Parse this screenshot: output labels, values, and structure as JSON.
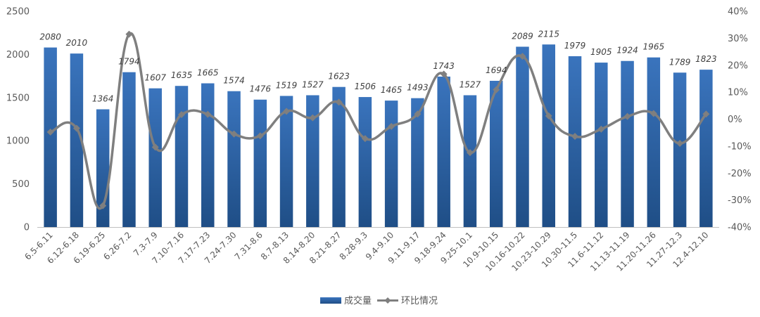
{
  "chart_data": {
    "type": "bar",
    "title": "",
    "xlabel": "",
    "ylabel": "",
    "ylim": [
      0,
      2500
    ],
    "y2lim": [
      -40,
      40
    ],
    "y_ticks": [
      "0",
      "500",
      "1000",
      "1500",
      "2000",
      "2500"
    ],
    "y2_ticks": [
      "-40%",
      "-30%",
      "-20%",
      "-10%",
      "0%",
      "10%",
      "20%",
      "30%",
      "40%"
    ],
    "categories": [
      "6.5-6.11",
      "6.12-6.18",
      "6.19-6.25",
      "6.26-7.2",
      "7.3-7.9",
      "7.10-7.16",
      "7.17-7.23",
      "7.24-7.30",
      "7.31-8.6",
      "8.7-8.13",
      "8.14-8.20",
      "8.21-8.27",
      "8.28-9.3",
      "9.4-9.10",
      "9.11-9.17",
      "9.18-9.24",
      "9.25-10.1",
      "10.9-10.15",
      "10.16-10.22",
      "10.23-10.29",
      "10.30-11.5",
      "11.6-11.12",
      "11.13-11.19",
      "11.20-11.26",
      "11.27-12.3",
      "12.4-12.10"
    ],
    "series": [
      {
        "name": "成交量",
        "type": "bar",
        "axis": "left",
        "color": "#2e64a8",
        "values": [
          2080,
          2010,
          1364,
          1794,
          1607,
          1635,
          1665,
          1574,
          1476,
          1519,
          1527,
          1623,
          1506,
          1465,
          1493,
          1743,
          1527,
          1694,
          2089,
          2115,
          1979,
          1905,
          1924,
          1965,
          1789,
          1823
        ]
      },
      {
        "name": "环比情况",
        "type": "line",
        "axis": "right",
        "unit": "%",
        "color": "#7f7f7f",
        "values": [
          -4.8,
          -3.4,
          -32.1,
          31.5,
          -10.4,
          1.7,
          1.8,
          -5.5,
          -6.2,
          2.9,
          0.5,
          6.3,
          -7.2,
          -2.7,
          1.9,
          16.7,
          -12.4,
          10.9,
          23.3,
          1.2,
          -6.4,
          -3.7,
          1.0,
          2.1,
          -9.0,
          1.9
        ]
      }
    ],
    "data_labels": [
      "2080",
      "2010",
      "1364",
      "1794",
      "1607",
      "1635",
      "1665",
      "1574",
      "1476",
      "1519",
      "1527",
      "1623",
      "1506",
      "1465",
      "1493",
      "1743",
      "1527",
      "1694",
      "2089",
      "2115",
      "1979",
      "1905",
      "1924",
      "1965",
      "1789",
      "1823"
    ],
    "legend": {
      "position": "bottom",
      "items": [
        "成交量",
        "环比情况"
      ]
    },
    "grid": false
  }
}
